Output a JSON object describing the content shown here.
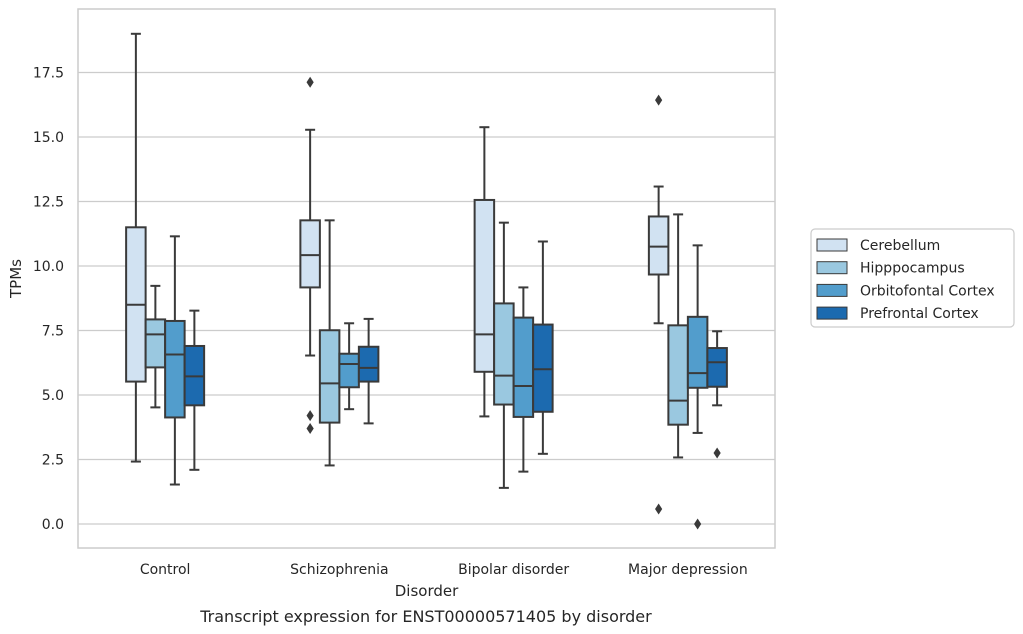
{
  "chart_data": {
    "type": "boxplot",
    "xlabel": "Disorder",
    "ylabel": "TPMs",
    "caption": "Transcript expression for ENST00000571405 by disorder",
    "ylim": [
      -0.92,
      19.95
    ],
    "yticks": [
      0.0,
      2.5,
      5.0,
      7.5,
      10.0,
      12.5,
      15.0,
      17.5
    ],
    "ytick_labels": [
      "0.0",
      "2.5",
      "5.0",
      "7.5",
      "10.0",
      "12.5",
      "15.0",
      "17.5"
    ],
    "grid": "horizontal",
    "legend_position": "right",
    "categories": [
      "Control",
      "Schizophrenia",
      "Bipolar disorder",
      "Major depression"
    ],
    "series": [
      {
        "name": "Cerebellum",
        "color": "#d1e2f2",
        "boxes": [
          {
            "whislo": 2.42,
            "q1": 5.52,
            "med": 8.5,
            "q3": 11.5,
            "whishi": 19.0,
            "fliers": []
          },
          {
            "whislo": 6.53,
            "q1": 9.17,
            "med": 10.42,
            "q3": 11.77,
            "whishi": 15.28,
            "fliers": [
              17.12,
              4.2,
              3.7
            ]
          },
          {
            "whislo": 4.17,
            "q1": 5.9,
            "med": 7.35,
            "q3": 12.56,
            "whishi": 15.38,
            "fliers": []
          },
          {
            "whislo": 7.78,
            "q1": 9.67,
            "med": 10.75,
            "q3": 11.92,
            "whishi": 13.08,
            "fliers": [
              16.43,
              0.58
            ]
          }
        ]
      },
      {
        "name": "Hipppocampus",
        "color": "#9ac8e0",
        "boxes": [
          {
            "whislo": 4.52,
            "q1": 6.07,
            "med": 7.35,
            "q3": 7.93,
            "whishi": 9.23,
            "fliers": []
          },
          {
            "whislo": 2.27,
            "q1": 3.93,
            "med": 5.45,
            "q3": 7.51,
            "whishi": 11.77,
            "fliers": []
          },
          {
            "whislo": 1.4,
            "q1": 4.63,
            "med": 5.75,
            "q3": 8.55,
            "whishi": 11.68,
            "fliers": []
          },
          {
            "whislo": 2.58,
            "q1": 3.85,
            "med": 4.78,
            "q3": 7.7,
            "whishi": 12.0,
            "fliers": []
          }
        ]
      },
      {
        "name": "Orbitofontal Cortex",
        "color": "#529dcc",
        "boxes": [
          {
            "whislo": 1.53,
            "q1": 4.13,
            "med": 6.57,
            "q3": 7.87,
            "whishi": 11.15,
            "fliers": []
          },
          {
            "whislo": 4.45,
            "q1": 5.3,
            "med": 6.2,
            "q3": 6.6,
            "whishi": 7.78,
            "fliers": []
          },
          {
            "whislo": 2.03,
            "q1": 4.15,
            "med": 5.35,
            "q3": 8.0,
            "whishi": 9.17,
            "fliers": []
          },
          {
            "whislo": 3.53,
            "q1": 5.28,
            "med": 5.85,
            "q3": 8.03,
            "whishi": 10.8,
            "fliers": [
              0.0
            ]
          }
        ]
      },
      {
        "name": "Prefrontal Cortex",
        "color": "#1c6aaf",
        "boxes": [
          {
            "whislo": 2.1,
            "q1": 4.6,
            "med": 5.72,
            "q3": 6.9,
            "whishi": 8.27,
            "fliers": []
          },
          {
            "whislo": 3.9,
            "q1": 5.52,
            "med": 6.05,
            "q3": 6.87,
            "whishi": 7.95,
            "fliers": []
          },
          {
            "whislo": 2.72,
            "q1": 4.35,
            "med": 6.0,
            "q3": 7.73,
            "whishi": 10.95,
            "fliers": []
          },
          {
            "whislo": 4.6,
            "q1": 5.32,
            "med": 6.27,
            "q3": 6.82,
            "whishi": 7.47,
            "fliers": [
              2.75
            ]
          }
        ]
      }
    ]
  }
}
